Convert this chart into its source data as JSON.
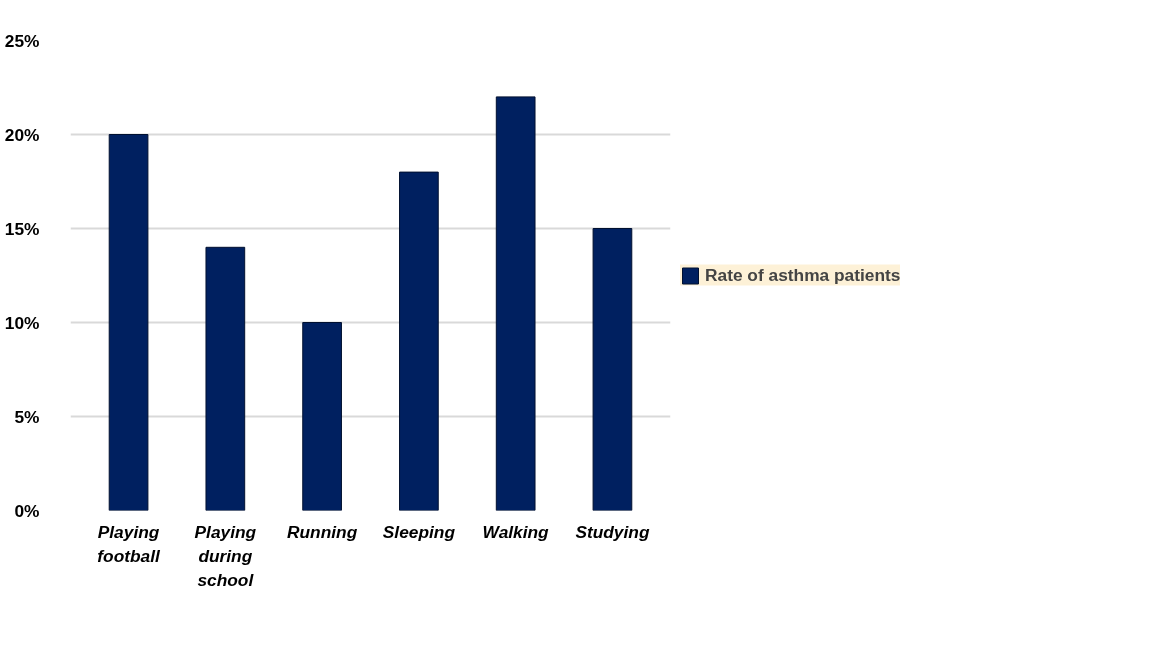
{
  "chart_data": {
    "type": "bar",
    "categories": [
      "Playing football",
      "Playing during school",
      "Running",
      "Sleeping",
      "Walking",
      "Studying"
    ],
    "series": [
      {
        "name": "Rate of asthma patients",
        "color": "#002060",
        "values": [
          20,
          14,
          10,
          18,
          22,
          15
        ]
      }
    ],
    "ylim": [
      0,
      25
    ],
    "yticks": [
      {
        "value": 0,
        "label": "0%"
      },
      {
        "value": 5,
        "label": "5%"
      },
      {
        "value": 10,
        "label": "10%"
      },
      {
        "value": 15,
        "label": "15%"
      },
      {
        "value": 20,
        "label": "20%"
      },
      {
        "value": 25,
        "label": "25%"
      }
    ],
    "grid": "y",
    "legend": "right"
  }
}
